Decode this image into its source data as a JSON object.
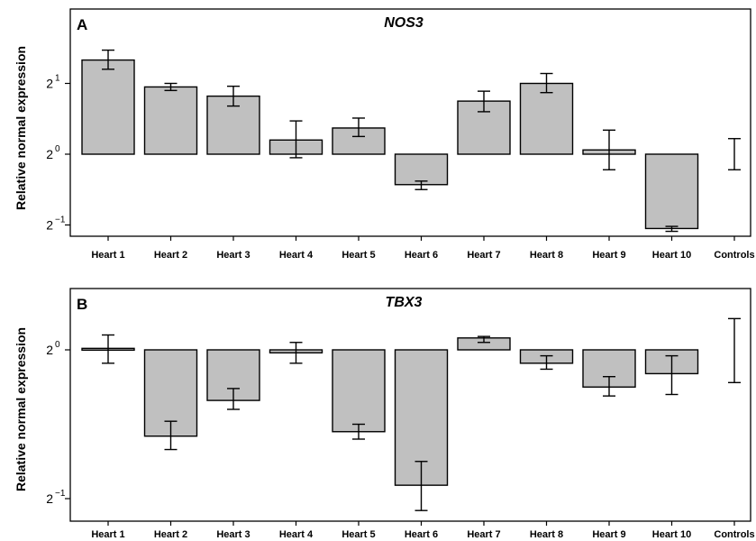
{
  "chart_data": [
    {
      "type": "bar",
      "panel_label": "A",
      "title": "NOS3",
      "ylabel": "Relative normal expression",
      "y_scale": "log2",
      "y_ticks": [
        {
          "base": "2",
          "exp": "1",
          "value": 1
        },
        {
          "base": "2",
          "exp": "0",
          "value": 0
        },
        {
          "base": "2",
          "exp": "−1",
          "value": -1
        }
      ],
      "ylim_log2": [
        -1.12,
        2.0
      ],
      "categories": [
        "Heart 1",
        "Heart 2",
        "Heart 3",
        "Heart 4",
        "Heart 5",
        "Heart 6",
        "Heart 7",
        "Heart 8",
        "Heart 9",
        "Heart 10",
        "Controls"
      ],
      "values_log2": [
        1.33,
        0.95,
        0.82,
        0.2,
        0.37,
        -0.43,
        0.75,
        1.0,
        0.06,
        -1.05,
        null
      ],
      "error_low_log2": [
        1.2,
        0.9,
        0.68,
        -0.05,
        0.25,
        -0.5,
        0.6,
        0.87,
        -0.22,
        -1.09,
        -0.22
      ],
      "error_high_log2": [
        1.47,
        1.0,
        0.96,
        0.47,
        0.51,
        -0.38,
        0.89,
        1.14,
        0.34,
        -1.02,
        0.22
      ],
      "bar_color": "#c0c0c0"
    },
    {
      "type": "bar",
      "panel_label": "B",
      "title": "TBX3",
      "ylabel": "Relative normal expression",
      "y_scale": "log2",
      "y_ticks": [
        {
          "base": "2",
          "exp": "0",
          "value": 0
        },
        {
          "base": "2",
          "exp": "−1",
          "value": -1
        }
      ],
      "ylim_log2": [
        -1.14,
        0.28
      ],
      "categories": [
        "Heart 1",
        "Heart 2",
        "Heart 3",
        "Heart 4",
        "Heart 5",
        "Heart 6",
        "Heart 7",
        "Heart 8",
        "Heart 9",
        "Heart 10",
        "Controls"
      ],
      "values_log2": [
        0.01,
        -0.58,
        -0.34,
        -0.02,
        -0.55,
        -0.91,
        0.08,
        -0.09,
        -0.25,
        -0.16,
        null
      ],
      "error_low_log2": [
        -0.09,
        -0.67,
        -0.4,
        -0.09,
        -0.6,
        -1.08,
        0.05,
        -0.13,
        -0.31,
        -0.3,
        -0.22
      ],
      "error_high_log2": [
        0.1,
        -0.48,
        -0.26,
        0.05,
        -0.5,
        -0.75,
        0.09,
        -0.04,
        -0.18,
        -0.04,
        0.21
      ],
      "bar_color": "#c0c0c0"
    }
  ]
}
